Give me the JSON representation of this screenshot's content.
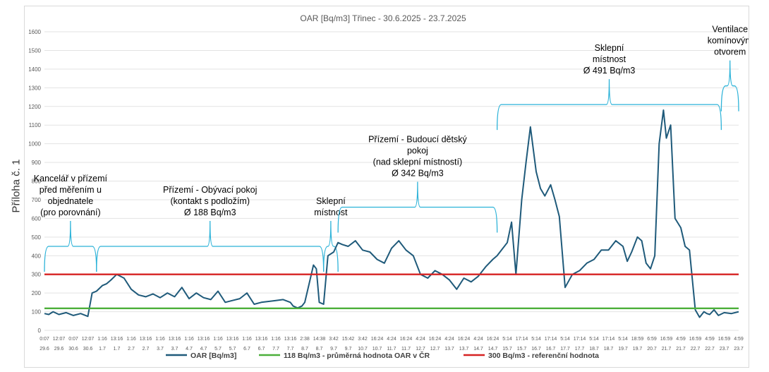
{
  "side_label": "Příloha č. 1",
  "chart_data": {
    "type": "line",
    "title": "OAR  [Bq/m3] Třinec - 30.6.2025 - 23.7.2025",
    "ylim": [
      0,
      1600
    ],
    "yticks": [
      "0",
      "100",
      "200",
      "300",
      "400",
      "500",
      "600",
      "700",
      "800",
      "900",
      "1000",
      "1100",
      "1200",
      "1300",
      "1400",
      "1500",
      "1600"
    ],
    "x_time_labels": [
      "0:07",
      "12:07",
      "0:07",
      "12:07",
      "1:16",
      "13:16",
      "1:16",
      "13:16",
      "1:16",
      "13:16",
      "1:16",
      "13:16",
      "1:16",
      "13:16",
      "1:16",
      "13:16",
      "1:16",
      "13:16",
      "2:38",
      "14:38",
      "3:42",
      "15:42",
      "3:42",
      "16:24",
      "4:24",
      "16:24",
      "4:24",
      "16:24",
      "4:24",
      "16:24",
      "4:24",
      "16:24",
      "5:14",
      "17:14",
      "5:14",
      "17:14",
      "5:14",
      "17:14",
      "5:14",
      "17:14",
      "5:14",
      "18:59",
      "6:59",
      "16:59",
      "4:59",
      "16:59",
      "4:59",
      "16:59",
      "4:59"
    ],
    "x_date_labels": [
      "29.6",
      "29.6",
      "30.6",
      "30.6",
      "1.7",
      "1.7",
      "2.7",
      "2.7",
      "3.7",
      "3.7",
      "4.7",
      "4.7",
      "5.7",
      "5.7",
      "6.7",
      "6.7",
      "7.7",
      "7.7",
      "8.7",
      "8.7",
      "9.7",
      "9.7",
      "10.7",
      "10.7",
      "11.7",
      "11.7",
      "12.7",
      "12.7",
      "13.7",
      "13.7",
      "14.7",
      "14.7",
      "15.7",
      "15.7",
      "16.7",
      "16.7",
      "17.7",
      "17.7",
      "18.7",
      "18.7",
      "19.7",
      "19.7",
      "20.7",
      "21.7",
      "21.7",
      "22.7",
      "22.7",
      "23.7",
      "23.7"
    ],
    "series": [
      {
        "name": "OAR [Bq/m3]",
        "color": "#1f5a7a",
        "x": [
          0,
          0.3,
          0.6,
          1,
          1.5,
          2,
          2.5,
          3,
          3.3,
          3.6,
          4,
          4.3,
          4.6,
          5,
          5.5,
          6,
          6.5,
          7,
          7.5,
          8,
          8.5,
          9,
          9.5,
          10,
          10.5,
          11,
          11.5,
          12,
          12.5,
          13,
          13.5,
          14,
          14.5,
          15,
          15.5,
          16,
          16.5,
          17,
          17.2,
          17.5,
          17.8,
          18,
          18.3,
          18.6,
          18.8,
          19,
          19.3,
          19.6,
          20,
          20.3,
          20.6,
          21,
          21.5,
          22,
          22.5,
          23,
          23.5,
          24,
          24.5,
          25,
          25.5,
          26,
          26.5,
          27,
          27.5,
          28,
          28.5,
          29,
          29.5,
          30,
          30.5,
          31,
          31.3,
          31.6,
          32,
          32.3,
          32.6,
          33,
          33.3,
          33.6,
          34,
          34.3,
          34.6,
          35,
          35.3,
          35.6,
          36,
          36.5,
          37,
          37.5,
          38,
          38.5,
          39,
          39.5,
          40,
          40.3,
          40.6,
          41,
          41.3,
          41.6,
          41.9,
          42.2,
          42.5,
          42.8,
          43,
          43.3,
          43.6,
          44,
          44.3,
          44.6,
          45,
          45.3,
          45.6,
          45.8,
          46,
          46.3,
          46.6,
          47,
          47.5,
          48
        ],
        "values": [
          90,
          85,
          100,
          85,
          95,
          80,
          90,
          75,
          200,
          210,
          240,
          250,
          270,
          300,
          280,
          220,
          190,
          180,
          195,
          175,
          200,
          180,
          230,
          170,
          200,
          175,
          165,
          210,
          150,
          160,
          170,
          200,
          140,
          150,
          155,
          160,
          165,
          150,
          130,
          120,
          130,
          150,
          250,
          350,
          330,
          150,
          140,
          400,
          420,
          470,
          460,
          450,
          480,
          430,
          420,
          380,
          360,
          440,
          480,
          430,
          400,
          300,
          280,
          320,
          300,
          270,
          220,
          280,
          260,
          290,
          340,
          380,
          400,
          430,
          470,
          580,
          300,
          700,
          900,
          1090,
          850,
          760,
          720,
          780,
          700,
          610,
          230,
          300,
          320,
          360,
          380,
          430,
          430,
          480,
          450,
          370,
          420,
          500,
          480,
          360,
          330,
          400,
          1000,
          1180,
          1030,
          1100,
          600,
          550,
          450,
          430,
          110,
          70,
          100,
          90,
          85,
          110,
          80,
          95,
          90,
          100
        ]
      },
      {
        "name": "118 Bq/m3 - průměrná hodnota OAR v ČR",
        "color": "#4caf3a",
        "constant": 118
      },
      {
        "name": "300 Bq/m3 - referenční hodnota",
        "color": "#d62222",
        "constant": 300
      }
    ],
    "annotations": [
      {
        "lines": [
          "Kancelář v přízemí",
          "před měřením u",
          "objednatele",
          "(pro porovnání)"
        ],
        "from": 0,
        "to": 3.6,
        "level": 450
      },
      {
        "lines": [
          "Přízemí - Obývací pokoj",
          "(kontakt s podložím)",
          "Ø 188 Bq/m3"
        ],
        "from": 3.6,
        "to": 19.3,
        "level": 450
      },
      {
        "lines": [
          "Sklepní",
          "místnost"
        ],
        "from": 19.3,
        "to": 20.3,
        "level": 450
      },
      {
        "lines": [
          "Přízemí - Budoucí dětský",
          "pokoj",
          "(nad sklepní místností)",
          "Ø 342 Bq/m3"
        ],
        "from": 20.3,
        "to": 31.3,
        "level": 660
      },
      {
        "lines": [
          "Sklepní",
          "místnost",
          "Ø 491 Bq/m3"
        ],
        "from": 31.3,
        "to": 46.8,
        "level": 1210
      },
      {
        "lines": [
          "Ventilace",
          "komínovým",
          "otvorem"
        ],
        "from": 46.8,
        "to": 48,
        "level": 1310
      }
    ]
  }
}
